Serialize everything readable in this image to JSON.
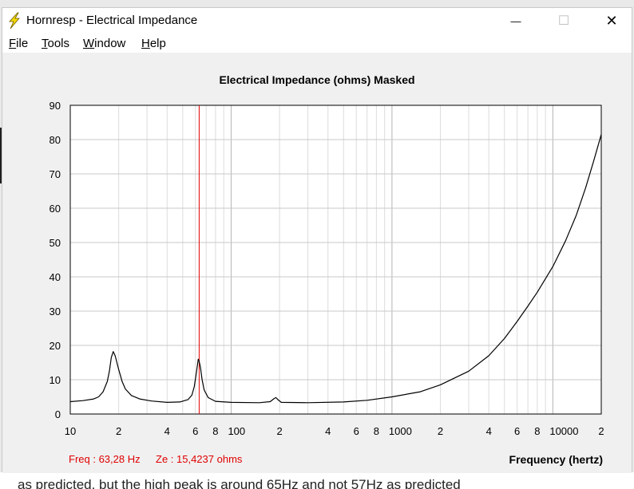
{
  "window": {
    "title": "Hornresp - Electrical Impedance",
    "minimize_glyph": "—",
    "maximize_glyph": "☐",
    "close_glyph": "✕",
    "icon": "lightning-bolt-icon"
  },
  "menu": [
    {
      "accel": "F",
      "rest": "ile"
    },
    {
      "accel": "T",
      "rest": "ools"
    },
    {
      "accel": "W",
      "rest": "indow"
    },
    {
      "accel": "H",
      "rest": "elp"
    }
  ],
  "chart_title": "Electrical Impedance (ohms)   Masked",
  "readout": {
    "freq": "Freq : 63,28 Hz",
    "ze": "Ze : 15,4237 ohms"
  },
  "x_axis_title": "Frequency (hertz)",
  "background_text": "as predicted, but the high peak is around 65Hz and not 57Hz as predicted",
  "colors": {
    "curve": "#000000",
    "marker": "#e00000",
    "grid": "#c8c8c8",
    "plot_bg": "#ffffff"
  },
  "chart_data": {
    "type": "line",
    "title": "Electrical Impedance (ohms)   Masked",
    "xlabel": "Frequency (hertz)",
    "ylabel": "",
    "x_scale": "log",
    "xlim": [
      10,
      20000
    ],
    "ylim": [
      0,
      90
    ],
    "y_ticks": [
      0,
      10,
      20,
      30,
      40,
      50,
      60,
      70,
      80,
      90
    ],
    "x_tick_labels": [
      {
        "value": 10,
        "label": "10"
      },
      {
        "value": 20,
        "label": "2"
      },
      {
        "value": 40,
        "label": "4"
      },
      {
        "value": 60,
        "label": "6"
      },
      {
        "value": 80,
        "label": "8"
      },
      {
        "value": 100,
        "label": "100"
      },
      {
        "value": 200,
        "label": "2"
      },
      {
        "value": 400,
        "label": "4"
      },
      {
        "value": 600,
        "label": "6"
      },
      {
        "value": 800,
        "label": "8"
      },
      {
        "value": 1000,
        "label": "1000"
      },
      {
        "value": 2000,
        "label": "2"
      },
      {
        "value": 4000,
        "label": "4"
      },
      {
        "value": 6000,
        "label": "6"
      },
      {
        "value": 8000,
        "label": "8"
      },
      {
        "value": 10000,
        "label": "10000"
      },
      {
        "value": 20000,
        "label": "2"
      }
    ],
    "grid": true,
    "marker_freq": 63.28,
    "series": [
      {
        "values": [
          [
            10,
            3.6
          ],
          [
            12,
            3.9
          ],
          [
            14,
            4.4
          ],
          [
            15,
            5.0
          ],
          [
            16,
            6.5
          ],
          [
            17,
            9.5
          ],
          [
            17.5,
            12.5
          ],
          [
            18,
            16.5
          ],
          [
            18.5,
            18.2
          ],
          [
            19,
            17.0
          ],
          [
            20,
            13.0
          ],
          [
            21,
            9.5
          ],
          [
            22,
            7.3
          ],
          [
            24,
            5.4
          ],
          [
            27,
            4.4
          ],
          [
            32,
            3.8
          ],
          [
            40,
            3.4
          ],
          [
            48,
            3.5
          ],
          [
            54,
            4.2
          ],
          [
            57,
            5.5
          ],
          [
            59,
            8.0
          ],
          [
            61,
            12.5
          ],
          [
            62.5,
            16.0
          ],
          [
            63.3,
            15.4
          ],
          [
            64.5,
            13.5
          ],
          [
            66,
            10.0
          ],
          [
            68,
            7.0
          ],
          [
            72,
            4.8
          ],
          [
            80,
            3.7
          ],
          [
            100,
            3.4
          ],
          [
            150,
            3.3
          ],
          [
            175,
            3.6
          ],
          [
            185,
            4.5
          ],
          [
            190,
            4.8
          ],
          [
            195,
            4.2
          ],
          [
            205,
            3.4
          ],
          [
            300,
            3.3
          ],
          [
            500,
            3.5
          ],
          [
            700,
            4.0
          ],
          [
            1000,
            5.0
          ],
          [
            1500,
            6.5
          ],
          [
            2000,
            8.5
          ],
          [
            3000,
            12.5
          ],
          [
            4000,
            17.0
          ],
          [
            5000,
            22.0
          ],
          [
            6000,
            27.0
          ],
          [
            7000,
            31.5
          ],
          [
            8000,
            35.5
          ],
          [
            10000,
            43.0
          ],
          [
            12000,
            50.5
          ],
          [
            14000,
            58.0
          ],
          [
            16000,
            66.0
          ],
          [
            18000,
            74.0
          ],
          [
            20000,
            81.5
          ]
        ]
      }
    ]
  }
}
